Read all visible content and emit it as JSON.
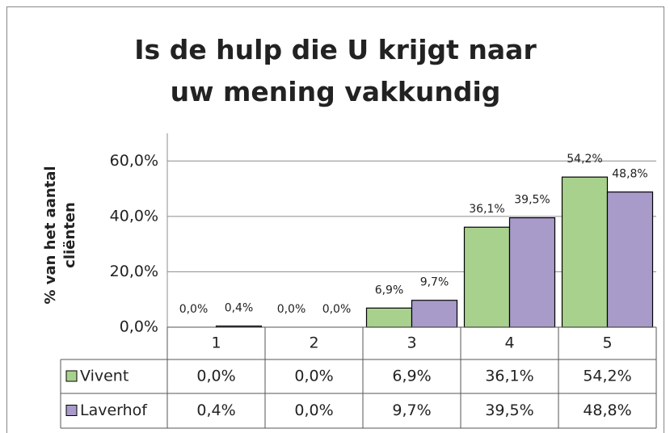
{
  "chart_data": {
    "type": "bar",
    "title": "Is de hulp die U krijgt naar uw mening vakkundig",
    "y_label": "% van het aantal cliënten",
    "categories": [
      "1",
      "2",
      "3",
      "4",
      "5"
    ],
    "series": [
      {
        "name": "Vivent",
        "color": "#a9d18e",
        "values": [
          0.0,
          0.0,
          6.9,
          36.1,
          54.2
        ],
        "value_labels": [
          "0,0%",
          "0,0%",
          "6,9%",
          "36,1%",
          "54,2%"
        ]
      },
      {
        "name": "Laverhof",
        "color": "#a99bc9",
        "values": [
          0.4,
          0.0,
          9.7,
          39.5,
          48.8
        ],
        "value_labels": [
          "0,4%",
          "0,0%",
          "9,7%",
          "39,5%",
          "48,8%"
        ]
      }
    ],
    "ylim": [
      0,
      70
    ],
    "yticks": [
      {
        "value": 0,
        "label": "0,0%"
      },
      {
        "value": 20,
        "label": "20,0%"
      },
      {
        "value": 40,
        "label": "40,0%"
      },
      {
        "value": 60,
        "label": "60,0%"
      }
    ],
    "grid": true,
    "data_table": true
  }
}
